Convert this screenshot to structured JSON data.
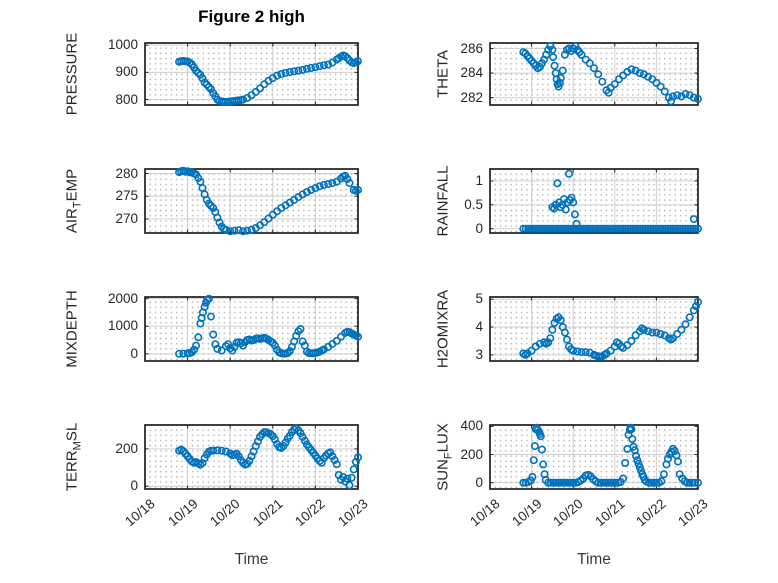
{
  "title": "Figure 2 high",
  "axis": {
    "xlabel": "Time"
  },
  "colors": {
    "marker": "#0072BD",
    "axes": "#262626",
    "grid_major": "#d0d0d0"
  },
  "x_ticks": {
    "values": [
      18,
      19,
      20,
      21,
      22,
      23
    ],
    "labels": [
      "10/18",
      "10/19",
      "10/20",
      "10/21",
      "10/22",
      "10/23"
    ]
  },
  "chart_data": [
    {
      "name": "pressure",
      "type": "scatter",
      "marker": "o",
      "ylabel": {
        "prefix": "PRESSURE",
        "sub": "",
        "suffix": ""
      },
      "xlim": [
        18,
        23
      ],
      "ylim": [
        780,
        1008
      ],
      "yticks": [
        800,
        900,
        1000
      ],
      "ytick_labels": [
        "800",
        "900",
        "1000"
      ],
      "x": [
        18.8,
        18.85,
        18.9,
        18.95,
        19.0,
        19.05,
        19.1,
        19.15,
        19.2,
        19.25,
        19.3,
        19.35,
        19.4,
        19.45,
        19.5,
        19.55,
        19.6,
        19.65,
        19.7,
        19.75,
        19.8,
        19.85,
        19.9,
        19.95,
        20.0,
        20.05,
        20.1,
        20.15,
        20.2,
        20.25,
        20.3,
        20.4,
        20.5,
        20.6,
        20.7,
        20.8,
        20.9,
        21.0,
        21.1,
        21.2,
        21.3,
        21.4,
        21.5,
        21.6,
        21.7,
        21.8,
        21.9,
        22.0,
        22.1,
        22.2,
        22.3,
        22.4,
        22.5,
        22.55,
        22.6,
        22.65,
        22.7,
        22.75,
        22.8,
        22.85,
        22.9,
        22.95,
        23.0
      ],
      "y": [
        939,
        941,
        942,
        941,
        940,
        936,
        929,
        918,
        906,
        898,
        891,
        878,
        863,
        855,
        846,
        838,
        824,
        812,
        800,
        795,
        793,
        792,
        791,
        792,
        793,
        794,
        795,
        796,
        797,
        798,
        800,
        806,
        816,
        828,
        841,
        856,
        869,
        879,
        888,
        894,
        898,
        901,
        904,
        906,
        909,
        913,
        916,
        919,
        923,
        926,
        929,
        936,
        947,
        952,
        958,
        962,
        960,
        953,
        944,
        937,
        934,
        937,
        941
      ]
    },
    {
      "name": "theta",
      "type": "scatter",
      "marker": "o",
      "ylabel": {
        "prefix": "THETA",
        "sub": "",
        "suffix": ""
      },
      "xlim": [
        18,
        23
      ],
      "ylim": [
        281.4,
        286.45
      ],
      "yticks": [
        282,
        284,
        286
      ],
      "ytick_labels": [
        "282",
        "284",
        "286"
      ],
      "x": [
        18.8,
        18.85,
        18.9,
        18.95,
        19.0,
        19.05,
        19.1,
        19.15,
        19.2,
        19.25,
        19.3,
        19.35,
        19.4,
        19.45,
        19.5,
        19.52,
        19.55,
        19.58,
        19.6,
        19.63,
        19.65,
        19.68,
        19.7,
        19.75,
        19.8,
        19.85,
        19.9,
        19.95,
        20.0,
        20.05,
        20.1,
        20.15,
        20.2,
        20.3,
        20.4,
        20.5,
        20.6,
        20.7,
        20.8,
        20.85,
        20.9,
        21.0,
        21.1,
        21.2,
        21.3,
        21.4,
        21.5,
        21.6,
        21.7,
        21.8,
        21.9,
        22.0,
        22.1,
        22.2,
        22.3,
        22.35,
        22.4,
        22.5,
        22.6,
        22.7,
        22.8,
        22.9,
        23.0
      ],
      "y": [
        285.7,
        285.6,
        285.4,
        285.2,
        285.0,
        284.8,
        284.6,
        284.4,
        284.5,
        284.8,
        285.1,
        285.5,
        285.9,
        286.2,
        285.9,
        285.3,
        284.6,
        284.0,
        283.5,
        283.1,
        282.9,
        283.2,
        283.6,
        284.2,
        285.5,
        285.9,
        286.0,
        285.8,
        286.0,
        286.2,
        285.9,
        285.7,
        285.5,
        285.1,
        284.8,
        284.4,
        283.9,
        283.3,
        282.6,
        282.4,
        282.8,
        283.1,
        283.5,
        283.8,
        284.1,
        284.3,
        284.2,
        284.0,
        283.9,
        283.7,
        283.5,
        283.2,
        282.9,
        282.5,
        282.0,
        281.7,
        282.1,
        282.2,
        282.1,
        282.3,
        282.2,
        282.0,
        281.9
      ]
    },
    {
      "name": "air-temp",
      "type": "scatter",
      "marker": "o",
      "ylabel": {
        "prefix": "AIR",
        "sub": "T",
        "suffix": "EMP"
      },
      "xlim": [
        18,
        23
      ],
      "ylim": [
        266.9,
        281.0
      ],
      "yticks": [
        270,
        275,
        280
      ],
      "ytick_labels": [
        "270",
        "275",
        "280"
      ],
      "x": [
        18.8,
        18.85,
        18.9,
        18.95,
        19.0,
        19.05,
        19.1,
        19.15,
        19.2,
        19.25,
        19.3,
        19.35,
        19.4,
        19.45,
        19.5,
        19.55,
        19.6,
        19.65,
        19.7,
        19.75,
        19.8,
        19.85,
        19.9,
        20.0,
        20.1,
        20.2,
        20.3,
        20.4,
        20.5,
        20.6,
        20.7,
        20.8,
        20.9,
        21.0,
        21.1,
        21.2,
        21.3,
        21.4,
        21.5,
        21.6,
        21.7,
        21.8,
        21.9,
        22.0,
        22.1,
        22.2,
        22.3,
        22.4,
        22.5,
        22.6,
        22.65,
        22.7,
        22.75,
        22.8,
        22.9,
        22.95,
        23.0
      ],
      "y": [
        280.3,
        280.5,
        280.6,
        280.4,
        280.5,
        280.3,
        280.2,
        280.0,
        279.8,
        279.0,
        278.2,
        276.8,
        275.4,
        274.2,
        273.4,
        272.9,
        272.4,
        271.5,
        270.3,
        269.2,
        268.3,
        267.8,
        267.6,
        267.3,
        267.4,
        267.5,
        267.3,
        267.4,
        267.6,
        268.0,
        268.6,
        269.3,
        270.1,
        270.9,
        271.7,
        272.4,
        273.0,
        273.6,
        274.2,
        274.8,
        275.4,
        275.9,
        276.4,
        276.8,
        277.2,
        277.5,
        277.7,
        277.9,
        278.2,
        278.9,
        279.3,
        279.5,
        278.8,
        277.9,
        276.4,
        276.2,
        276.4
      ]
    },
    {
      "name": "rainfall",
      "type": "scatter",
      "marker": "o",
      "ylabel": {
        "prefix": "RAINFALL",
        "sub": "",
        "suffix": ""
      },
      "xlim": [
        18,
        23
      ],
      "ylim": [
        -0.09,
        1.25
      ],
      "yticks": [
        0,
        0.5,
        1
      ],
      "ytick_labels": [
        "0",
        "0.5",
        "1"
      ],
      "x": [
        18.8,
        18.86,
        18.92,
        18.98,
        19.04,
        19.1,
        19.16,
        19.22,
        19.28,
        19.34,
        19.4,
        19.46,
        19.52,
        19.58,
        19.64,
        19.7,
        19.76,
        19.82,
        19.88,
        19.94,
        20.0,
        20.06,
        20.12,
        20.18,
        20.24,
        20.3,
        20.36,
        20.42,
        20.48,
        20.54,
        20.6,
        20.66,
        20.72,
        20.78,
        20.84,
        20.9,
        20.96,
        21.02,
        21.08,
        21.14,
        21.2,
        21.26,
        21.32,
        21.38,
        21.44,
        21.5,
        21.56,
        21.62,
        21.68,
        21.74,
        21.8,
        21.86,
        21.92,
        21.98,
        22.04,
        22.1,
        22.16,
        22.22,
        22.28,
        22.34,
        22.4,
        22.46,
        22.52,
        22.58,
        22.64,
        22.7,
        22.76,
        22.82,
        22.88,
        22.94,
        23.0,
        19.5,
        19.54,
        19.58,
        19.62,
        19.66,
        19.7,
        19.74,
        19.78,
        19.82,
        19.86,
        19.9,
        19.92,
        19.96,
        20.0,
        20.04,
        20.08,
        22.9
      ],
      "y": [
        0,
        0,
        0,
        0,
        0,
        0,
        0,
        0,
        0,
        0,
        0,
        0,
        0,
        0,
        0,
        0,
        0,
        0,
        0,
        0,
        0,
        0,
        0,
        0,
        0,
        0,
        0,
        0,
        0,
        0,
        0,
        0,
        0,
        0,
        0,
        0,
        0,
        0,
        0,
        0,
        0,
        0,
        0,
        0,
        0,
        0,
        0,
        0,
        0,
        0,
        0,
        0,
        0,
        0,
        0,
        0,
        0,
        0,
        0,
        0,
        0,
        0,
        0,
        0,
        0,
        0,
        0,
        0,
        0,
        0,
        0,
        0.45,
        0.42,
        0.5,
        0.95,
        0.55,
        0.45,
        0.5,
        0.62,
        0.4,
        0.55,
        1.15,
        0.6,
        0.65,
        0.55,
        0.3,
        0.1,
        0.2
      ]
    },
    {
      "name": "mixdepth",
      "type": "scatter",
      "marker": "o",
      "ylabel": {
        "prefix": "MIXDEPTH",
        "sub": "",
        "suffix": ""
      },
      "xlim": [
        18,
        23
      ],
      "ylim": [
        -260,
        2060
      ],
      "yticks": [
        0,
        1000,
        2000
      ],
      "ytick_labels": [
        "0",
        "1000",
        "2000"
      ],
      "x": [
        18.8,
        18.9,
        19.0,
        19.05,
        19.1,
        19.15,
        19.2,
        19.25,
        19.3,
        19.33,
        19.36,
        19.4,
        19.43,
        19.46,
        19.5,
        19.55,
        19.6,
        19.65,
        19.7,
        19.8,
        19.9,
        19.95,
        20.0,
        20.05,
        20.1,
        20.15,
        20.2,
        20.25,
        20.3,
        20.35,
        20.4,
        20.45,
        20.5,
        20.55,
        20.6,
        20.65,
        20.7,
        20.75,
        20.8,
        20.85,
        20.9,
        20.95,
        21.0,
        21.05,
        21.1,
        21.15,
        21.2,
        21.25,
        21.3,
        21.35,
        21.4,
        21.45,
        21.5,
        21.55,
        21.6,
        21.65,
        21.7,
        21.75,
        21.8,
        21.85,
        21.9,
        21.95,
        22.0,
        22.05,
        22.1,
        22.15,
        22.2,
        22.3,
        22.4,
        22.5,
        22.6,
        22.7,
        22.75,
        22.8,
        22.85,
        22.9,
        22.95,
        23.0
      ],
      "y": [
        0,
        5,
        15,
        30,
        60,
        150,
        300,
        600,
        1100,
        1300,
        1500,
        1700,
        1850,
        1950,
        2000,
        1350,
        700,
        350,
        180,
        120,
        280,
        350,
        200,
        120,
        250,
        400,
        420,
        380,
        300,
        430,
        500,
        520,
        480,
        500,
        550,
        560,
        540,
        560,
        580,
        550,
        500,
        450,
        400,
        300,
        150,
        50,
        20,
        10,
        10,
        30,
        100,
        250,
        450,
        650,
        820,
        900,
        450,
        300,
        80,
        30,
        20,
        20,
        30,
        50,
        80,
        120,
        160,
        250,
        360,
        470,
        620,
        760,
        800,
        780,
        740,
        700,
        660,
        620
      ]
    },
    {
      "name": "h2omixra",
      "type": "scatter",
      "marker": "o",
      "ylabel": {
        "prefix": "H2OMIXRA",
        "sub": "",
        "suffix": ""
      },
      "xlim": [
        18,
        23
      ],
      "ylim": [
        2.78,
        5.08
      ],
      "yticks": [
        3,
        4,
        5
      ],
      "ytick_labels": [
        "3",
        "4",
        "5"
      ],
      "x": [
        18.8,
        18.85,
        18.9,
        19.0,
        19.1,
        19.2,
        19.3,
        19.35,
        19.4,
        19.45,
        19.5,
        19.55,
        19.6,
        19.65,
        19.7,
        19.75,
        19.8,
        19.85,
        19.9,
        19.95,
        20.0,
        20.1,
        20.2,
        20.3,
        20.4,
        20.5,
        20.55,
        20.6,
        20.65,
        20.7,
        20.75,
        20.8,
        20.9,
        21.0,
        21.05,
        21.1,
        21.15,
        21.2,
        21.3,
        21.4,
        21.5,
        21.6,
        21.65,
        21.7,
        21.8,
        21.9,
        22.0,
        22.1,
        22.2,
        22.3,
        22.35,
        22.4,
        22.5,
        22.6,
        22.7,
        22.8,
        22.9,
        22.95,
        23.0
      ],
      "y": [
        3.05,
        3.0,
        3.05,
        3.15,
        3.3,
        3.4,
        3.45,
        3.4,
        3.45,
        3.6,
        3.9,
        4.15,
        4.3,
        4.35,
        4.25,
        4.0,
        3.8,
        3.55,
        3.3,
        3.2,
        3.15,
        3.12,
        3.1,
        3.1,
        3.08,
        3.0,
        2.97,
        2.95,
        2.93,
        2.95,
        3.0,
        3.05,
        3.15,
        3.3,
        3.45,
        3.4,
        3.3,
        3.25,
        3.35,
        3.5,
        3.7,
        3.85,
        3.95,
        3.9,
        3.85,
        3.8,
        3.8,
        3.75,
        3.7,
        3.6,
        3.55,
        3.6,
        3.75,
        3.9,
        4.1,
        4.35,
        4.6,
        4.75,
        4.9
      ]
    },
    {
      "name": "terr-msl",
      "type": "scatter",
      "marker": "o",
      "ylabel": {
        "prefix": "TERR",
        "sub": "M",
        "suffix": "SL"
      },
      "xlim": [
        18,
        23
      ],
      "ylim": [
        -15,
        328
      ],
      "yticks": [
        0,
        200
      ],
      "ytick_labels": [
        "0",
        "200"
      ],
      "x": [
        18.8,
        18.85,
        18.9,
        18.95,
        19.0,
        19.05,
        19.1,
        19.15,
        19.2,
        19.25,
        19.3,
        19.35,
        19.4,
        19.45,
        19.5,
        19.55,
        19.6,
        19.7,
        19.8,
        19.9,
        20.0,
        20.05,
        20.1,
        20.15,
        20.2,
        20.25,
        20.3,
        20.35,
        20.4,
        20.45,
        20.5,
        20.55,
        20.6,
        20.65,
        20.7,
        20.75,
        20.8,
        20.85,
        20.9,
        20.95,
        21.0,
        21.05,
        21.1,
        21.15,
        21.2,
        21.25,
        21.3,
        21.35,
        21.4,
        21.45,
        21.5,
        21.55,
        21.6,
        21.65,
        21.7,
        21.75,
        21.8,
        21.85,
        21.9,
        21.95,
        22.0,
        22.05,
        22.1,
        22.15,
        22.2,
        22.25,
        22.3,
        22.35,
        22.4,
        22.45,
        22.5,
        22.55,
        22.6,
        22.65,
        22.7,
        22.75,
        22.8,
        22.85,
        22.9,
        22.95,
        23.0
      ],
      "y": [
        190,
        196,
        188,
        174,
        160,
        145,
        132,
        126,
        129,
        122,
        115,
        124,
        150,
        170,
        185,
        190,
        191,
        192,
        190,
        186,
        175,
        166,
        170,
        174,
        160,
        140,
        126,
        116,
        120,
        136,
        160,
        186,
        215,
        240,
        264,
        278,
        290,
        289,
        284,
        278,
        268,
        250,
        226,
        210,
        205,
        216,
        235,
        255,
        270,
        290,
        304,
        310,
        299,
        284,
        264,
        244,
        224,
        209,
        194,
        179,
        164,
        149,
        135,
        126,
        150,
        164,
        175,
        181,
        160,
        140,
        118,
        60,
        35,
        50,
        25,
        40,
        5,
        45,
        90,
        130,
        155
      ]
    },
    {
      "name": "sun-flux",
      "type": "scatter",
      "marker": "o",
      "ylabel": {
        "prefix": "SUN",
        "sub": "F",
        "suffix": "LUX"
      },
      "xlim": [
        18,
        23
      ],
      "ylim": [
        -45,
        410
      ],
      "yticks": [
        0,
        200,
        400
      ],
      "ytick_labels": [
        "0",
        "200",
        "400"
      ],
      "x": [
        18.8,
        18.86,
        18.92,
        18.98,
        19.02,
        19.05,
        19.08,
        19.1,
        19.12,
        19.15,
        19.18,
        19.2,
        19.22,
        19.25,
        19.28,
        19.31,
        19.34,
        19.4,
        19.46,
        19.52,
        19.58,
        19.64,
        19.7,
        19.76,
        19.82,
        19.88,
        19.94,
        20.0,
        20.06,
        20.12,
        20.18,
        20.24,
        20.3,
        20.36,
        20.42,
        20.48,
        20.54,
        20.6,
        20.66,
        20.72,
        20.78,
        20.84,
        20.9,
        20.96,
        21.02,
        21.08,
        21.14,
        21.2,
        21.25,
        21.3,
        21.33,
        21.36,
        21.38,
        21.4,
        21.42,
        21.45,
        21.48,
        21.51,
        21.54,
        21.57,
        21.6,
        21.63,
        21.66,
        21.69,
        21.72,
        21.76,
        21.82,
        21.88,
        21.94,
        22.0,
        22.06,
        22.12,
        22.18,
        22.24,
        22.28,
        22.32,
        22.36,
        22.4,
        22.44,
        22.48,
        22.52,
        22.56,
        22.62,
        22.68,
        22.74,
        22.8,
        22.86,
        22.92,
        23.0
      ],
      "y": [
        0,
        0,
        5,
        15,
        40,
        160,
        260,
        380,
        390,
        375,
        360,
        345,
        330,
        235,
        130,
        60,
        20,
        0,
        0,
        0,
        0,
        0,
        0,
        0,
        0,
        0,
        0,
        0,
        0,
        5,
        15,
        30,
        50,
        55,
        45,
        25,
        10,
        0,
        0,
        0,
        0,
        0,
        0,
        0,
        0,
        0,
        5,
        30,
        140,
        240,
        340,
        375,
        390,
        380,
        310,
        255,
        230,
        190,
        160,
        135,
        110,
        85,
        60,
        40,
        20,
        8,
        0,
        0,
        0,
        0,
        0,
        10,
        60,
        130,
        170,
        200,
        220,
        240,
        225,
        195,
        150,
        60,
        30,
        10,
        0,
        0,
        0,
        0,
        0
      ]
    }
  ]
}
